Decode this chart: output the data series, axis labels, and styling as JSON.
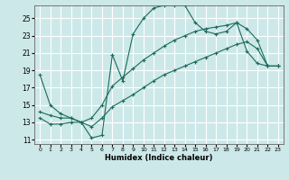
{
  "xlabel": "Humidex (Indice chaleur)",
  "bg_color": "#cde8e8",
  "grid_color": "#ffffff",
  "line_color": "#1a6b5a",
  "xlim": [
    -0.5,
    23.5
  ],
  "ylim": [
    10.5,
    26.5
  ],
  "xticks": [
    0,
    1,
    2,
    3,
    4,
    5,
    6,
    7,
    8,
    9,
    10,
    11,
    12,
    13,
    14,
    15,
    16,
    17,
    18,
    19,
    20,
    21,
    22,
    23
  ],
  "yticks": [
    11,
    13,
    15,
    17,
    19,
    21,
    23,
    25
  ],
  "line1_x": [
    0,
    1,
    2,
    3,
    4,
    5,
    6,
    7,
    8,
    9,
    10,
    11,
    12,
    13,
    14,
    15,
    16,
    17,
    18,
    19,
    20,
    21,
    22,
    23
  ],
  "line1_y": [
    18.5,
    15.0,
    14.0,
    13.5,
    13.0,
    11.2,
    11.5,
    20.8,
    17.8,
    23.2,
    25.0,
    26.2,
    26.5,
    26.5,
    26.5,
    24.5,
    23.5,
    23.2,
    23.5,
    24.5,
    21.2,
    19.8,
    19.5,
    19.5
  ],
  "line2_x": [
    0,
    1,
    2,
    3,
    4,
    5,
    6,
    7,
    8,
    9,
    10,
    11,
    12,
    13,
    14,
    15,
    16,
    17,
    18,
    19,
    20,
    21,
    22,
    23
  ],
  "line2_y": [
    14.2,
    13.8,
    13.5,
    13.5,
    13.0,
    13.5,
    15.0,
    17.2,
    18.2,
    19.2,
    20.2,
    21.0,
    21.8,
    22.5,
    23.0,
    23.5,
    23.8,
    24.0,
    24.2,
    24.5,
    23.8,
    22.5,
    19.5,
    19.5
  ],
  "line3_x": [
    0,
    1,
    2,
    3,
    4,
    5,
    6,
    7,
    8,
    9,
    10,
    11,
    12,
    13,
    14,
    15,
    16,
    17,
    18,
    19,
    20,
    21,
    22,
    23
  ],
  "line3_y": [
    13.5,
    12.8,
    12.8,
    13.0,
    13.0,
    12.5,
    13.5,
    14.8,
    15.5,
    16.2,
    17.0,
    17.8,
    18.5,
    19.0,
    19.5,
    20.0,
    20.5,
    21.0,
    21.5,
    22.0,
    22.3,
    21.5,
    19.5,
    19.5
  ]
}
